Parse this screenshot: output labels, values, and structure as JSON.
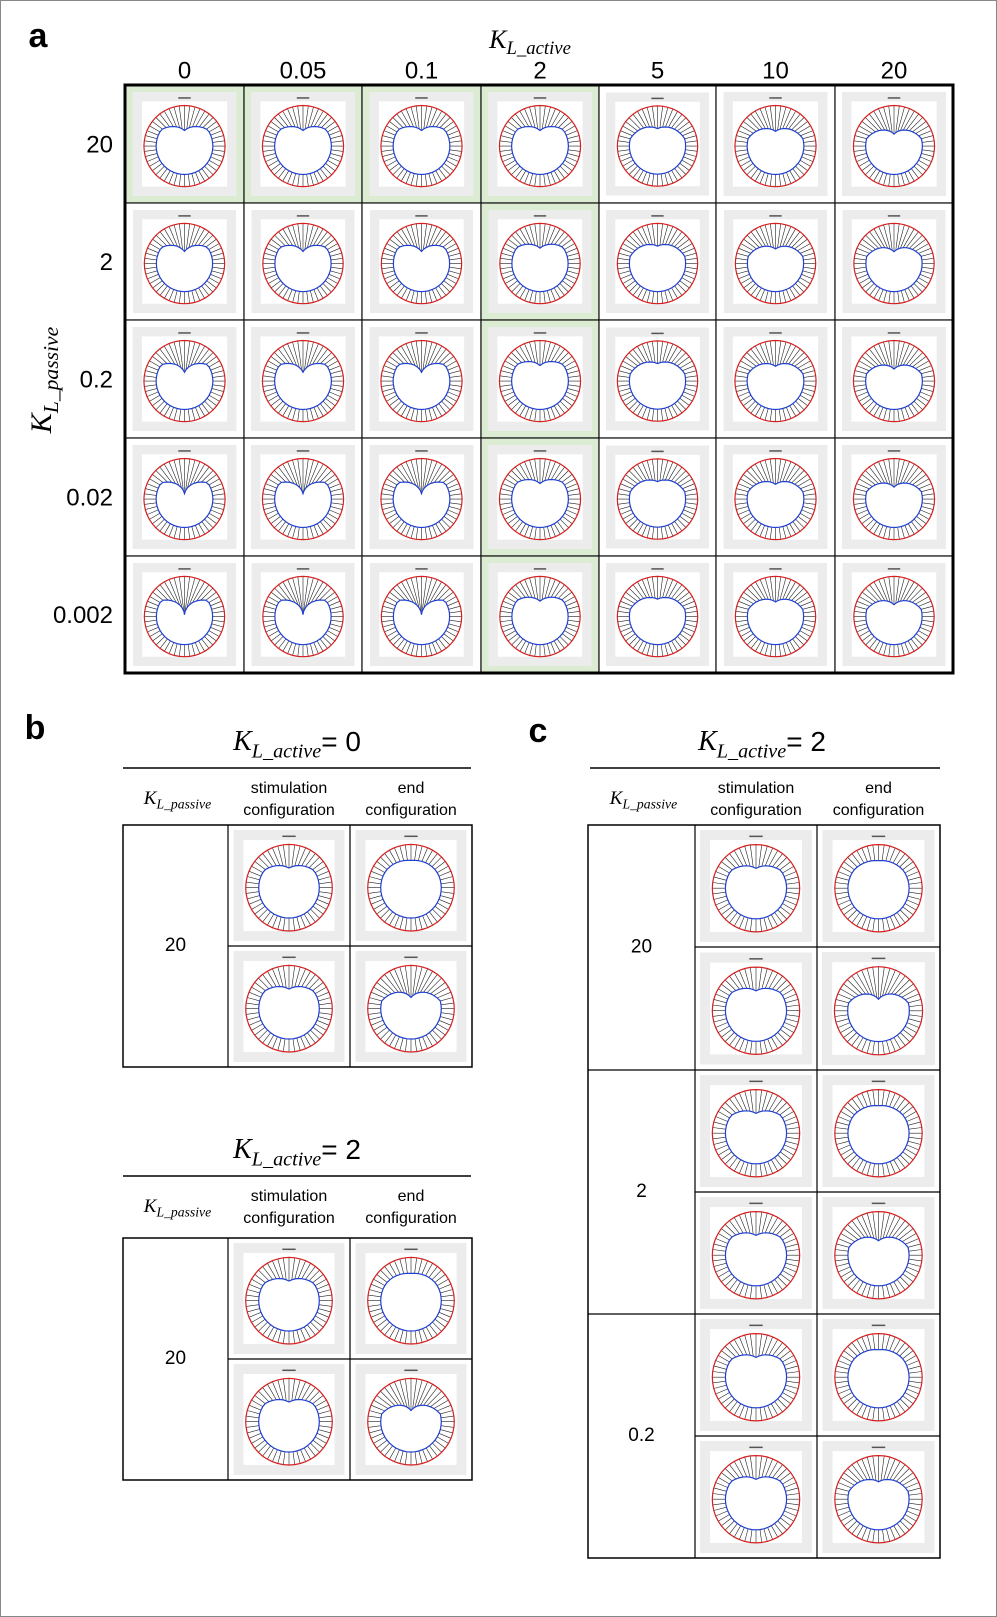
{
  "panel_a": {
    "label": "a",
    "column_axis": {
      "symbol": "K",
      "subscript": "L_active"
    },
    "columns": [
      "0",
      "0.05",
      "0.1",
      "2",
      "5",
      "10",
      "20"
    ],
    "row_axis": {
      "symbol": "K",
      "subscript": "L_passive"
    },
    "rows": [
      "20",
      "2",
      "0.2",
      "0.02",
      "0.002"
    ]
  },
  "panel_b": {
    "label": "b",
    "tables": [
      {
        "title": {
          "symbol": "K",
          "subscript": "L_active",
          "suffix": "= 0"
        },
        "row_axis": {
          "symbol": "K",
          "subscript": "L_passive"
        },
        "stimulation": [
          "stimulation",
          "configuration"
        ],
        "end": [
          "end",
          "configuration"
        ],
        "groups": [
          "20"
        ]
      },
      {
        "title": {
          "symbol": "K",
          "subscript": "L_active",
          "suffix": "= 2"
        },
        "row_axis": {
          "symbol": "K",
          "subscript": "L_passive"
        },
        "stimulation": [
          "stimulation",
          "configuration"
        ],
        "end": [
          "end",
          "configuration"
        ],
        "groups": [
          "20"
        ]
      }
    ]
  },
  "panel_c": {
    "label": "c",
    "tables": [
      {
        "title": {
          "symbol": "K",
          "subscript": "L_active",
          "suffix": "= 2"
        },
        "row_axis": {
          "symbol": "K",
          "subscript": "L_passive"
        },
        "stimulation": [
          "stimulation",
          "configuration"
        ],
        "end": [
          "end",
          "configuration"
        ],
        "groups": [
          "20",
          "2",
          "0.2"
        ]
      }
    ]
  }
}
